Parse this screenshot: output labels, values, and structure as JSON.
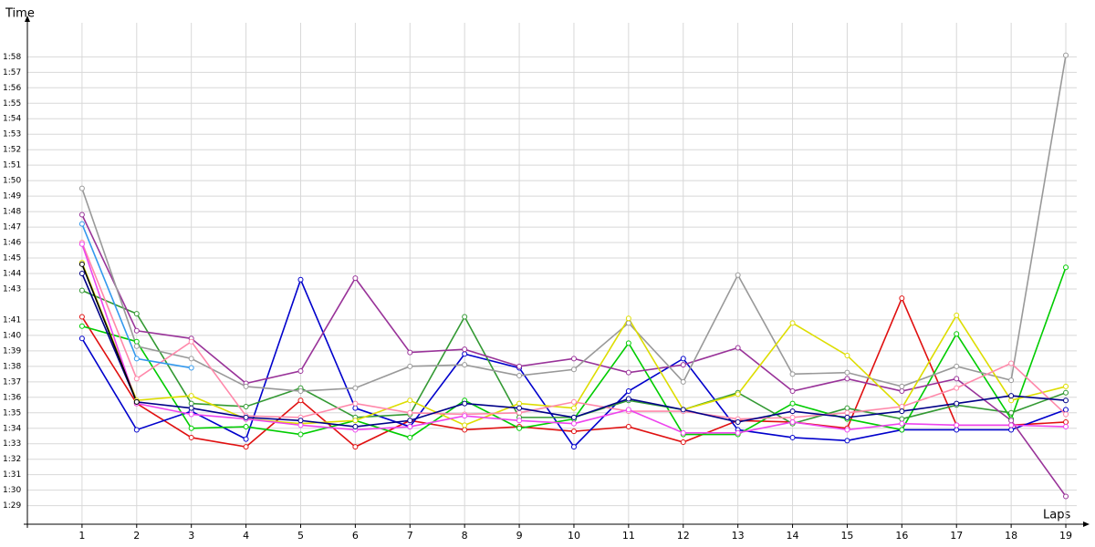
{
  "chart_data": {
    "type": "line",
    "y_label": "Time",
    "x_label": "Laps",
    "x": [
      1,
      2,
      3,
      4,
      5,
      6,
      7,
      8,
      9,
      10,
      11,
      12,
      13,
      14,
      15,
      16,
      17,
      18,
      19
    ],
    "xlim": [
      0,
      19.2
    ],
    "xticks": [
      1,
      2,
      3,
      4,
      5,
      6,
      7,
      8,
      9,
      10,
      11,
      12,
      13,
      14,
      15,
      16,
      17,
      18,
      19
    ],
    "ylim": [
      87.8,
      120.2
    ],
    "yticks": [
      {
        "value": 89,
        "label": "1:29"
      },
      {
        "value": 90,
        "label": "1:30"
      },
      {
        "value": 91,
        "label": "1:31"
      },
      {
        "value": 92,
        "label": "1:32"
      },
      {
        "value": 93,
        "label": "1:33"
      },
      {
        "value": 94,
        "label": "1:34"
      },
      {
        "value": 95,
        "label": "1:35"
      },
      {
        "value": 96,
        "label": "1:36"
      },
      {
        "value": 97,
        "label": "1:37"
      },
      {
        "value": 98,
        "label": "1:38"
      },
      {
        "value": 99,
        "label": "1:39"
      },
      {
        "value": 100,
        "label": "1:40"
      },
      {
        "value": 101,
        "label": "1:41"
      },
      {
        "value": 103,
        "label": "1:43"
      },
      {
        "value": 104,
        "label": "1:44"
      },
      {
        "value": 105,
        "label": "1:45"
      },
      {
        "value": 106,
        "label": "1:46"
      },
      {
        "value": 107,
        "label": "1:47"
      },
      {
        "value": 108,
        "label": "1:48"
      },
      {
        "value": 109,
        "label": "1:49"
      },
      {
        "value": 110,
        "label": "1:50"
      },
      {
        "value": 111,
        "label": "1:51"
      },
      {
        "value": 112,
        "label": "1:52"
      },
      {
        "value": 113,
        "label": "1:53"
      },
      {
        "value": 114,
        "label": "1:54"
      },
      {
        "value": 115,
        "label": "1:55"
      },
      {
        "value": 116,
        "label": "1:56"
      },
      {
        "value": 117,
        "label": "1:57"
      },
      {
        "value": 118,
        "label": "1:58"
      }
    ],
    "grid": true,
    "series": [
      {
        "color": "#e01010",
        "values": [
          101.2,
          95.6,
          93.4,
          92.8,
          95.8,
          92.8,
          94.5,
          93.9,
          94.1,
          93.8,
          94.1,
          93.1,
          94.5,
          94.4,
          94.0,
          102.4,
          94.2,
          94.2,
          94.4
        ]
      },
      {
        "color": "#0000cc",
        "values": [
          99.8,
          93.9,
          95.1,
          93.3,
          103.6,
          95.3,
          94.1,
          98.8,
          97.9,
          92.8,
          96.4,
          98.5,
          93.9,
          93.4,
          93.2,
          93.9,
          93.9,
          93.9,
          95.2
        ]
      },
      {
        "color": "#00cc00",
        "values": [
          100.6,
          99.6,
          94.0,
          94.1,
          93.6,
          94.5,
          93.4,
          95.8,
          94.0,
          94.6,
          99.5,
          93.6,
          93.6,
          95.6,
          94.6,
          93.9,
          100.1,
          94.6,
          104.4
        ]
      },
      {
        "color": "#339933",
        "values": [
          102.9,
          101.4,
          95.6,
          95.4,
          96.6,
          94.7,
          94.9,
          101.2,
          94.7,
          94.7,
          95.8,
          95.2,
          96.3,
          94.3,
          95.3,
          94.6,
          95.5,
          95.0,
          96.3
        ]
      },
      {
        "color": "#993399",
        "values": [
          107.8,
          100.3,
          99.8,
          96.9,
          97.7,
          103.7,
          98.9,
          99.1,
          98.0,
          98.5,
          97.6,
          98.1,
          99.2,
          96.4,
          97.2,
          96.4,
          97.2,
          94.5,
          89.6
        ]
      },
      {
        "color": "#999999",
        "values": [
          109.5,
          99.3,
          98.5,
          96.7,
          96.4,
          96.6,
          98.0,
          98.1,
          97.4,
          97.8,
          100.8,
          97.0,
          103.9,
          97.5,
          97.6,
          96.7,
          98.0,
          97.1,
          118.1
        ]
      },
      {
        "color": "#dddd00",
        "values": [
          104.7,
          95.8,
          96.1,
          94.6,
          94.3,
          94.5,
          95.8,
          94.2,
          95.6,
          95.3,
          101.1,
          95.2,
          96.2,
          100.8,
          98.7,
          95.3,
          101.3,
          95.8,
          96.7
        ]
      },
      {
        "color": "#ff88aa",
        "values": [
          106.0,
          97.2,
          99.6,
          94.8,
          94.7,
          95.6,
          95.0,
          94.9,
          95.0,
          95.7,
          95.1,
          95.1,
          94.6,
          94.7,
          95.0,
          95.4,
          96.6,
          98.2,
          94.9
        ]
      },
      {
        "color": "#ee44ee",
        "values": [
          105.9,
          95.6,
          94.9,
          94.6,
          94.2,
          93.9,
          94.1,
          94.8,
          94.5,
          94.3,
          95.2,
          93.7,
          93.7,
          94.4,
          93.9,
          94.3,
          94.2,
          94.2,
          94.1
        ]
      },
      {
        "color": "#000088",
        "values": [
          104.0,
          95.7,
          95.3,
          94.7,
          94.5,
          94.1,
          94.5,
          95.6,
          95.3,
          94.7,
          95.9,
          95.2,
          94.4,
          95.1,
          94.7,
          95.1,
          95.6,
          96.1,
          95.8
        ]
      },
      {
        "color": "#3399ee",
        "values": [
          107.2,
          98.5,
          97.9,
          null,
          null,
          null,
          null,
          null,
          null,
          null,
          null,
          null,
          null,
          null,
          null,
          null,
          null,
          null,
          null
        ]
      },
      {
        "color": "#000000",
        "values": [
          104.6,
          95.7,
          null,
          null,
          null,
          null,
          null,
          null,
          null,
          null,
          null,
          null,
          null,
          null,
          null,
          null,
          null,
          null,
          null
        ]
      }
    ]
  }
}
